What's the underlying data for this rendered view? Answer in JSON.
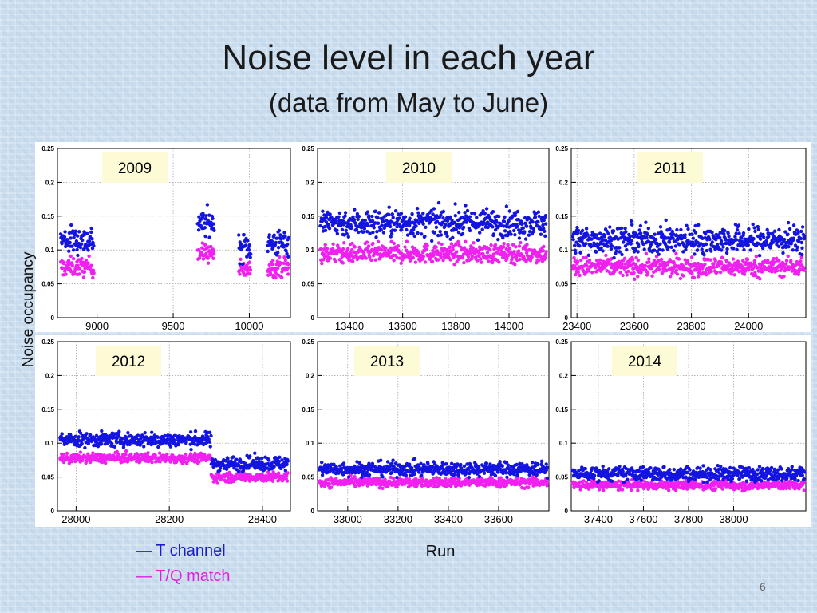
{
  "slide": {
    "title": "Noise level in each year",
    "subtitle": "(data from May to June)",
    "ylabel": "Noise occupancy",
    "xlabel": "Run",
    "page_number": "6"
  },
  "legend": [
    {
      "label": "— T channel",
      "color": "#1a1ad6"
    },
    {
      "label": "— T/Q match",
      "color": "#e020e0"
    }
  ],
  "colors": {
    "t_channel": "#1414e0",
    "tq_match": "#f020f0",
    "year_box": "#fdfbd6"
  },
  "chart_data": [
    {
      "type": "scatter",
      "year_label": "2009",
      "xlim": [
        8740,
        10270
      ],
      "ylim": [
        0,
        0.25
      ],
      "xticks": [
        9000,
        9500,
        10000
      ],
      "yticks": [
        0,
        0.05,
        0.1,
        0.15,
        0.2,
        0.25
      ],
      "grid": true,
      "series": [
        {
          "name": "T channel",
          "segments": [
            [
              8760,
              8980,
              0.115
            ],
            [
              9660,
              9770,
              0.14
            ],
            [
              9930,
              10010,
              0.105
            ],
            [
              10120,
              10260,
              0.11
            ]
          ]
        },
        {
          "name": "T/Q match",
          "segments": [
            [
              8760,
              8980,
              0.075
            ],
            [
              9660,
              9770,
              0.095
            ],
            [
              9930,
              10010,
              0.07
            ],
            [
              10120,
              10260,
              0.075
            ]
          ]
        }
      ]
    },
    {
      "type": "scatter",
      "year_label": "2010",
      "xlim": [
        13280,
        14150
      ],
      "ylim": [
        0,
        0.25
      ],
      "xticks": [
        13400,
        13600,
        13800,
        14000
      ],
      "yticks": [
        0,
        0.05,
        0.1,
        0.15,
        0.2,
        0.25
      ],
      "grid": true,
      "series": [
        {
          "name": "T channel",
          "segments": [
            [
              13290,
              14140,
              0.14
            ]
          ]
        },
        {
          "name": "T/Q match",
          "segments": [
            [
              13290,
              14140,
              0.095
            ]
          ]
        }
      ]
    },
    {
      "type": "scatter",
      "year_label": "2011",
      "xlim": [
        23380,
        24200
      ],
      "ylim": [
        0,
        0.25
      ],
      "xticks": [
        23400,
        23600,
        23800,
        24000
      ],
      "yticks": [
        0,
        0.05,
        0.1,
        0.15,
        0.2,
        0.25
      ],
      "grid": true,
      "series": [
        {
          "name": "T channel",
          "segments": [
            [
              23385,
              24195,
              0.115
            ]
          ]
        },
        {
          "name": "T/Q match",
          "segments": [
            [
              23385,
              24195,
              0.075
            ]
          ]
        }
      ]
    },
    {
      "type": "scatter",
      "year_label": "2012",
      "xlim": [
        27960,
        28460
      ],
      "ylim": [
        0,
        0.25
      ],
      "xticks": [
        28000,
        28200,
        28400
      ],
      "yticks": [
        0,
        0.05,
        0.1,
        0.15,
        0.2,
        0.25
      ],
      "grid": true,
      "series": [
        {
          "name": "T channel",
          "segments": [
            [
              27965,
              28290,
              0.105
            ],
            [
              28290,
              28455,
              0.07
            ]
          ]
        },
        {
          "name": "T/Q match",
          "segments": [
            [
              27965,
              28290,
              0.078
            ],
            [
              28290,
              28455,
              0.05
            ]
          ]
        }
      ]
    },
    {
      "type": "scatter",
      "year_label": "2013",
      "xlim": [
        32880,
        33800
      ],
      "ylim": [
        0,
        0.25
      ],
      "xticks": [
        33000,
        33200,
        33400,
        33600
      ],
      "yticks": [
        0,
        0.05,
        0.1,
        0.15,
        0.2,
        0.25
      ],
      "grid": true,
      "series": [
        {
          "name": "T channel",
          "segments": [
            [
              32885,
              33795,
              0.062
            ]
          ]
        },
        {
          "name": "T/Q match",
          "segments": [
            [
              32885,
              33795,
              0.042
            ]
          ]
        }
      ]
    },
    {
      "type": "scatter",
      "year_label": "2014",
      "xlim": [
        37280,
        38320
      ],
      "ylim": [
        0,
        0.25
      ],
      "xticks": [
        37400,
        37600,
        37800,
        38000
      ],
      "yticks": [
        0,
        0.05,
        0.1,
        0.15,
        0.2,
        0.25
      ],
      "grid": true,
      "series": [
        {
          "name": "T channel",
          "segments": [
            [
              37285,
              38315,
              0.055
            ]
          ]
        },
        {
          "name": "T/Q match",
          "segments": [
            [
              37285,
              38315,
              0.038
            ]
          ]
        }
      ]
    }
  ]
}
